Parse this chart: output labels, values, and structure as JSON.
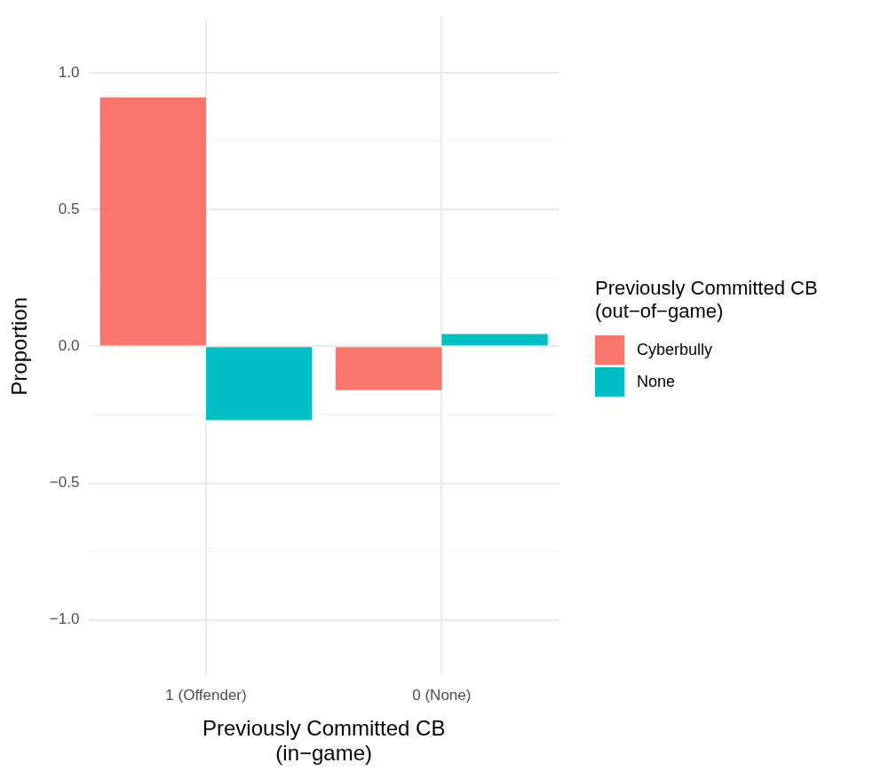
{
  "chart_data": {
    "type": "bar",
    "xlabel": "Previously Committed CB\n(in−game)",
    "ylabel": "Proportion",
    "legend_title": "Previously Committed CB\n(out−of−game)",
    "categories": [
      "1 (Offender)",
      "0 (None)"
    ],
    "series": [
      {
        "name": "Cyberbully",
        "color": "#f8766d",
        "values": [
          0.91,
          -0.16
        ]
      },
      {
        "name": "None",
        "color": "#00bfc4",
        "values": [
          -0.27,
          0.045
        ]
      }
    ],
    "ylim": [
      -1.2,
      1.2
    ],
    "yticks": [
      {
        "value": -1,
        "label": "−1.0"
      },
      {
        "value": -0.75,
        "label": null
      },
      {
        "value": -0.5,
        "label": "−0.5"
      },
      {
        "value": -0.25,
        "label": null
      },
      {
        "value": 0,
        "label": "0.0"
      },
      {
        "value": 0.25,
        "label": null
      },
      {
        "value": 0.5,
        "label": "0.5"
      },
      {
        "value": 0.75,
        "label": null
      },
      {
        "value": 1,
        "label": "1.0"
      }
    ],
    "grid": true,
    "legend": "right"
  }
}
